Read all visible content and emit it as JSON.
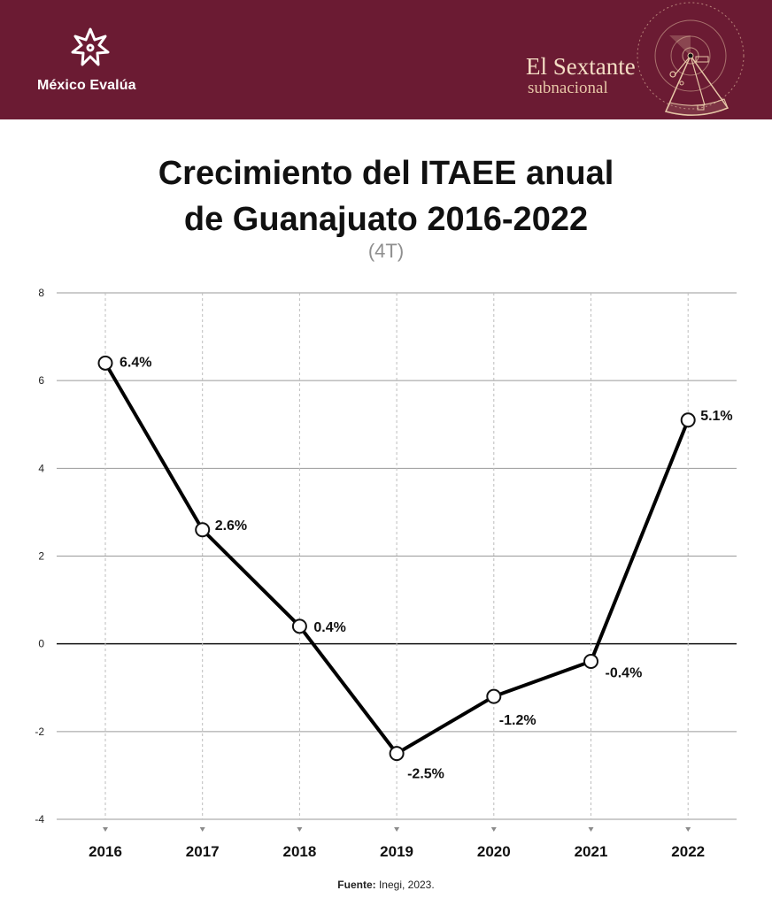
{
  "header": {
    "brand_name": "México Evalúa",
    "publication_title": "El Sextante",
    "publication_subtitle": "subnacional",
    "logo_icon": "asterisk-flower-icon",
    "sextant_icon": "sextant-icon",
    "colors": {
      "header_bg": "#6b1b33",
      "accent": "#f3dcc3"
    }
  },
  "chart_data": {
    "type": "line",
    "title_line1": "Crecimiento del ITAEE anual",
    "title_line2": "de Guanajuato 2016-2022",
    "subtitle": "(4T)",
    "xlabel": "",
    "ylabel": "",
    "categories": [
      "2016",
      "2017",
      "2018",
      "2019",
      "2020",
      "2021",
      "2022"
    ],
    "series": [
      {
        "values": [
          6.4,
          2.6,
          0.4,
          -2.5,
          -1.2,
          -0.4,
          5.1
        ],
        "labels": [
          "6.4%",
          "2.6%",
          "0.4%",
          "-2.5%",
          "-1.2%",
          "-0.4%",
          "5.1%"
        ],
        "color": "#000000"
      }
    ],
    "ylim": [
      -4,
      8
    ],
    "yticks": [
      8,
      6,
      4,
      2,
      0,
      -2,
      -4
    ],
    "grid": true,
    "legend": "none"
  },
  "footer": {
    "source_label": "Fuente:",
    "source_text": " Inegi, 2023."
  }
}
